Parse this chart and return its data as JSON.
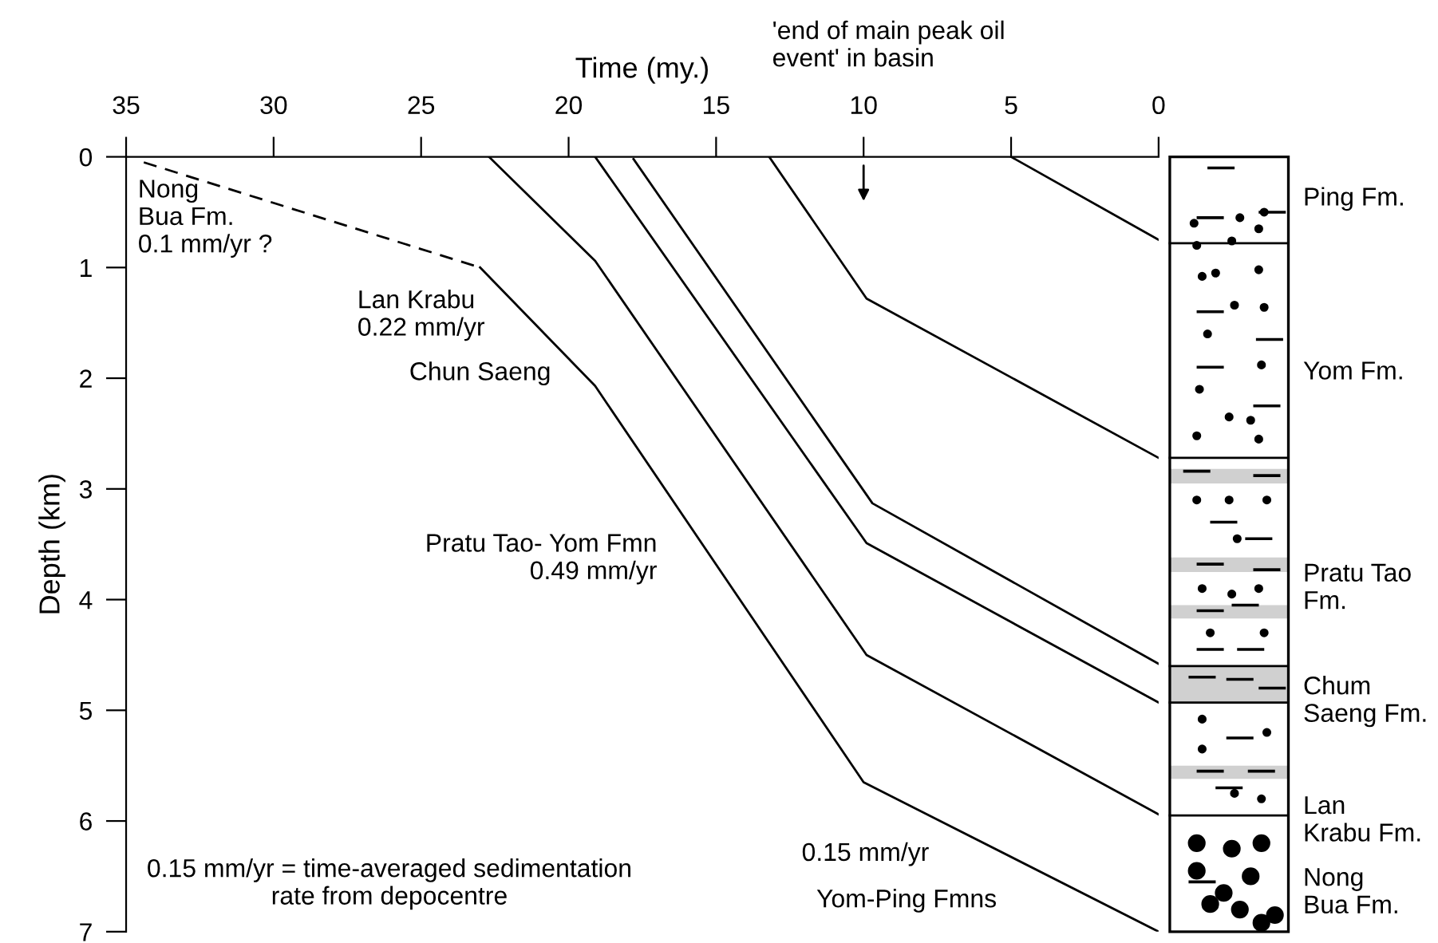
{
  "chart_data": {
    "type": "line",
    "xlabel": "Time (my.)",
    "ylabel": "Depth (km)",
    "xlim": [
      35,
      0
    ],
    "xticks": [
      35,
      30,
      25,
      20,
      15,
      10,
      5,
      0
    ],
    "ylim": [
      7,
      0
    ],
    "yticks": [
      0,
      1,
      2,
      3,
      4,
      5,
      6,
      7
    ],
    "grid": false,
    "legend": false,
    "marker": "none",
    "series": [
      {
        "color": "#000000",
        "line_style": "dashed",
        "x": [
          34.4,
          23
        ],
        "values": [
          0.05,
          1.0
        ]
      },
      {
        "color": "#000000",
        "line_style": "solid",
        "x": [
          23,
          19.1,
          10,
          0
        ],
        "values": [
          1.0,
          2.07,
          5.65,
          7.0
        ]
      },
      {
        "color": "#000000",
        "line_style": "solid",
        "x": [
          22.7,
          19.1,
          9.9,
          0
        ],
        "values": [
          0,
          0.94,
          4.5,
          5.94
        ]
      },
      {
        "color": "#000000",
        "line_style": "solid",
        "x": [
          19.1,
          9.9,
          0
        ],
        "values": [
          0,
          3.49,
          4.93
        ]
      },
      {
        "color": "#000000",
        "line_style": "solid",
        "x": [
          17.8,
          9.7,
          0
        ],
        "values": [
          0.02,
          3.13,
          4.58
        ]
      },
      {
        "color": "#000000",
        "line_style": "solid",
        "x": [
          13.2,
          9.9,
          0
        ],
        "values": [
          0,
          1.28,
          2.72
        ]
      },
      {
        "color": "#000000",
        "line_style": "solid",
        "x": [
          5.0,
          0
        ],
        "values": [
          0,
          0.75
        ]
      }
    ],
    "annotations": [
      "'end of main peak oil\nevent' in basin",
      "Nong\nBua Fm.\n0.1 mm/yr ?",
      "Lan Krabu\n0.22 mm/yr",
      "Chun Saeng",
      "Pratu Tao- Yom Fmn\n0.49 mm/yr",
      "0.15 mm/yr = time-averaged sedimentation\nrate from depocentre",
      "0.15 mm/yr",
      "Yom-Ping Fmns",
      "Ping Fm.",
      "Yom Fm.",
      "Pratu Tao\nFm.",
      "Chum\nSaeng Fm.",
      "Lan\nKrabu Fm.",
      "Nong\nBua Fm."
    ]
  }
}
